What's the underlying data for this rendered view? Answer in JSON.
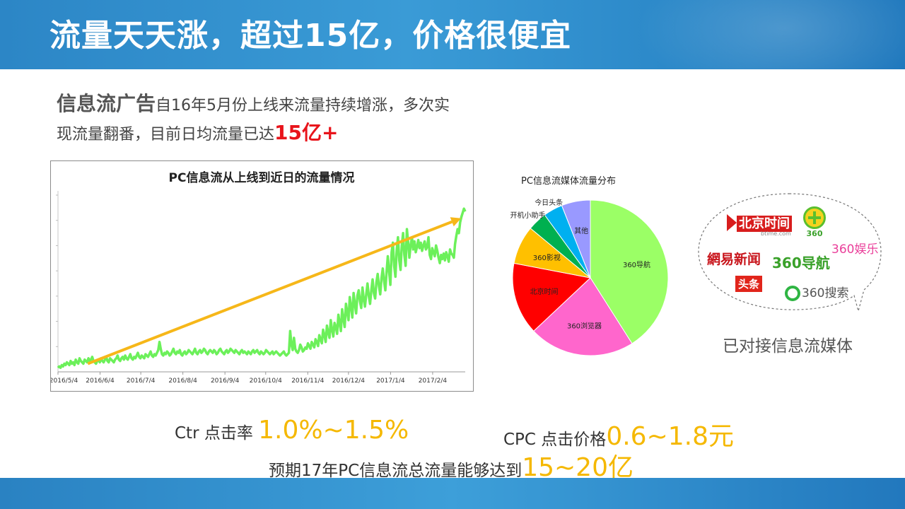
{
  "header": {
    "title": "流量天天涨，超过15亿，价格很便宜"
  },
  "intro": {
    "lead": "信息流广告",
    "line1": "自16年5月份上线来流量持续增涨，多次实",
    "line2": "现流量翻番，目前日均流量已达",
    "highlight": "15亿+"
  },
  "chart_data": [
    {
      "type": "line",
      "title": "PC信息流从上线到近日的流量情况",
      "x_tick_labels": [
        "2016/5/4",
        "2016/6/4",
        "2016/7/4",
        "2016/8/4",
        "2016/9/4",
        "2016/10/4",
        "2016/11/4",
        "2016/12/4",
        "2017/1/4",
        "2017/2/4"
      ],
      "x_range": [
        "2016-05-04",
        "2017-02-28"
      ],
      "series_color": "#6cf05a",
      "trend_color": "#f6b719",
      "trend_arrow": true,
      "grid": false,
      "daily_values": [
        0.03,
        0.04,
        0.03,
        0.05,
        0.04,
        0.06,
        0.05,
        0.07,
        0.06,
        0.05,
        0.08,
        0.06,
        0.07,
        0.05,
        0.09,
        0.07,
        0.06,
        0.1,
        0.08,
        0.07,
        0.06,
        0.09,
        0.08,
        0.07,
        0.1,
        0.08,
        0.09,
        0.11,
        0.08,
        0.07,
        0.06,
        0.08,
        0.09,
        0.07,
        0.1,
        0.08,
        0.07,
        0.09,
        0.11,
        0.08,
        0.07,
        0.1,
        0.09,
        0.08,
        0.07,
        0.09,
        0.1,
        0.12,
        0.09,
        0.08,
        0.1,
        0.11,
        0.09,
        0.12,
        0.1,
        0.09,
        0.11,
        0.13,
        0.1,
        0.09,
        0.11,
        0.1,
        0.12,
        0.14,
        0.11,
        0.1,
        0.12,
        0.11,
        0.1,
        0.13,
        0.12,
        0.11,
        0.13,
        0.15,
        0.12,
        0.11,
        0.13,
        0.12,
        0.14,
        0.16,
        0.22,
        0.17,
        0.13,
        0.12,
        0.14,
        0.13,
        0.15,
        0.14,
        0.12,
        0.13,
        0.15,
        0.17,
        0.14,
        0.13,
        0.15,
        0.14,
        0.16,
        0.13,
        0.12,
        0.14,
        0.15,
        0.13,
        0.14,
        0.16,
        0.15,
        0.14,
        0.13,
        0.15,
        0.17,
        0.14,
        0.13,
        0.15,
        0.16,
        0.14,
        0.15,
        0.17,
        0.16,
        0.14,
        0.13,
        0.15,
        0.16,
        0.15,
        0.14,
        0.16,
        0.15,
        0.13,
        0.14,
        0.16,
        0.17,
        0.15,
        0.14,
        0.13,
        0.15,
        0.16,
        0.14,
        0.15,
        0.17,
        0.16,
        0.15,
        0.14,
        0.16,
        0.15,
        0.14,
        0.13,
        0.15,
        0.16,
        0.14,
        0.15,
        0.14,
        0.13,
        0.15,
        0.14,
        0.13,
        0.15,
        0.16,
        0.14,
        0.15,
        0.16,
        0.14,
        0.13,
        0.15,
        0.14,
        0.13,
        0.14,
        0.16,
        0.15,
        0.14,
        0.13,
        0.14,
        0.15,
        0.13,
        0.14,
        0.15,
        0.14,
        0.13,
        0.12,
        0.13,
        0.14,
        0.15,
        0.13,
        0.12,
        0.13,
        0.14,
        0.3,
        0.2,
        0.16,
        0.25,
        0.17,
        0.15,
        0.14,
        0.16,
        0.2,
        0.18,
        0.15,
        0.16,
        0.18,
        0.17,
        0.21,
        0.19,
        0.17,
        0.22,
        0.2,
        0.18,
        0.24,
        0.22,
        0.19,
        0.27,
        0.24,
        0.21,
        0.31,
        0.27,
        0.22,
        0.34,
        0.29,
        0.25,
        0.38,
        0.31,
        0.26,
        0.36,
        0.33,
        0.28,
        0.42,
        0.36,
        0.3,
        0.46,
        0.39,
        0.33,
        0.5,
        0.44,
        0.38,
        0.55,
        0.48,
        0.4,
        0.58,
        0.5,
        0.43,
        0.56,
        0.6,
        0.52,
        0.47,
        0.62,
        0.54,
        0.48,
        0.57,
        0.65,
        0.56,
        0.5,
        0.6,
        0.68,
        0.58,
        0.54,
        0.66,
        0.72,
        0.63,
        0.57,
        0.69,
        0.76,
        0.67,
        0.6,
        0.73,
        0.85,
        0.74,
        0.64,
        0.88,
        0.95,
        0.78,
        0.7,
        0.9,
        0.99,
        0.82,
        0.75,
        0.93,
        1.02,
        0.86,
        0.78,
        1.05,
        0.95,
        0.84,
        0.93,
        0.99,
        0.9,
        0.96,
        0.88,
        0.92,
        0.97,
        0.91,
        0.95,
        0.89,
        0.93,
        0.96,
        0.9,
        0.92,
        0.99,
        0.86,
        0.83,
        0.91,
        0.88,
        0.85,
        0.93,
        0.89,
        0.84,
        0.8,
        0.86,
        0.83,
        0.87,
        0.82,
        0.88,
        0.85,
        0.81,
        0.9,
        0.87,
        0.86,
        0.84,
        0.94,
        1.0,
        1.05,
        1.02,
        1.1,
        1.14,
        1.17,
        1.2,
        1.18
      ],
      "trend_start": [
        "2016-05-26",
        0.06
      ],
      "trend_end": [
        "2017-02-25",
        1.13
      ]
    },
    {
      "type": "pie",
      "title": "PC信息流媒体流量分布",
      "slices": [
        {
          "label": "360导航",
          "value": 41,
          "color": "#9bff66"
        },
        {
          "label": "360浏览器",
          "value": 22,
          "color": "#ff66cc"
        },
        {
          "label": "北京时间",
          "value": 15,
          "color": "#ff0000"
        },
        {
          "label": "360影视",
          "value": 8,
          "color": "#ffc000"
        },
        {
          "label": "开机小助手",
          "value": 4,
          "color": "#00b050"
        },
        {
          "label": "今日头条",
          "value": 4,
          "color": "#00b0f0"
        },
        {
          "label": "其他",
          "value": 6,
          "color": "#9999ff"
        }
      ]
    }
  ],
  "media": {
    "logos": [
      "北京时间",
      "btime.com",
      "360",
      "360娱乐",
      "網易新闻",
      "360导航",
      "头条",
      "360搜索"
    ],
    "caption": "已对接信息流媒体"
  },
  "stats": {
    "ctr_label": "Ctr 点击率 ",
    "ctr_value": "1.0%~1.5%",
    "cpc_label": "CPC 点击价格",
    "cpc_value": "0.6~1.8元",
    "forecast_label": "预期17年PC信息流总流量能够达到",
    "forecast_value": "15~20亿"
  }
}
